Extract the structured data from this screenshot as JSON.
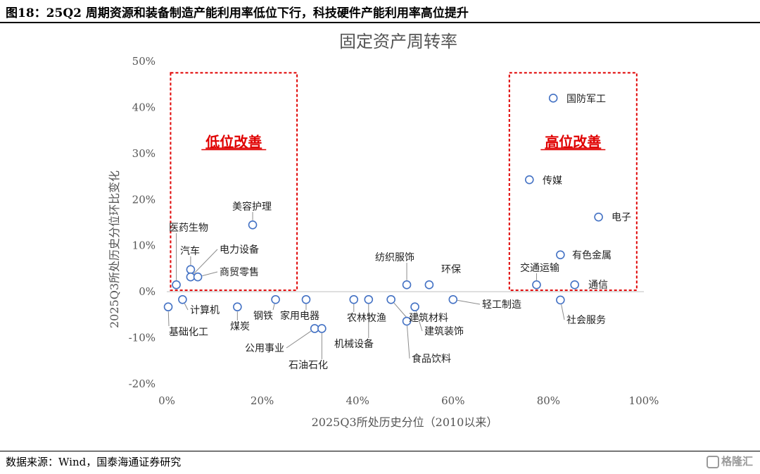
{
  "header": {
    "title": "图18：25Q2 周期资源和装备制造产能利用率低位下行，科技硬件产能利用率高位提升"
  },
  "footer": {
    "source": "数据来源：Wind，国泰海通证券研究",
    "watermark": "格隆汇"
  },
  "chart_data": {
    "type": "scatter",
    "title": "固定资产周转率",
    "xlabel": "2025Q3所处历史分位（2010以来）",
    "ylabel": "2025Q3所处历史分位环比变化",
    "xlim": [
      0,
      100
    ],
    "ylim": [
      -20,
      50
    ],
    "x_ticks": [
      "0%",
      "20%",
      "40%",
      "60%",
      "80%",
      "100%"
    ],
    "y_ticks": [
      "50%",
      "40%",
      "30%",
      "20%",
      "10%",
      "0%",
      "-10%",
      "-20%"
    ],
    "grid": false,
    "marker_color": "#4472C4",
    "highlight_color": "#e00000",
    "regions": [
      {
        "label": "低位改善",
        "x": [
          0.8,
          27.3
        ],
        "y": [
          0.3,
          47.5
        ]
      },
      {
        "label": "高位改善",
        "x": [
          71.8,
          98.5
        ],
        "y": [
          0.3,
          47.5
        ]
      }
    ],
    "points": [
      {
        "name": "国防军工",
        "x": 81,
        "y": 42
      },
      {
        "name": "传媒",
        "x": 76,
        "y": 24.3
      },
      {
        "name": "电子",
        "x": 90.5,
        "y": 16.2
      },
      {
        "name": "有色金属",
        "x": 82.5,
        "y": 8
      },
      {
        "name": "交通运输",
        "x": 77.5,
        "y": 1.5
      },
      {
        "name": "通信",
        "x": 85.5,
        "y": 1.5
      },
      {
        "name": "社会服务",
        "x": 82.5,
        "y": -1.8
      },
      {
        "name": "美容护理",
        "x": 18,
        "y": 14.5
      },
      {
        "name": "医药生物",
        "x": 2,
        "y": 1.5
      },
      {
        "name": "汽车",
        "x": 5,
        "y": 4.8
      },
      {
        "name": "电力设备",
        "x": 5,
        "y": 3.2
      },
      {
        "name": "商贸零售",
        "x": 6.5,
        "y": 3.2
      },
      {
        "name": "基础化工",
        "x": 0.3,
        "y": -3.3
      },
      {
        "name": "计算机",
        "x": 3.3,
        "y": -1.7
      },
      {
        "name": "煤炭",
        "x": 14.8,
        "y": -3.3
      },
      {
        "name": "钢铁",
        "x": 22.8,
        "y": -1.7
      },
      {
        "name": "家用电器",
        "x": 29.2,
        "y": -1.7
      },
      {
        "name": "公用事业",
        "x": 31,
        "y": -8
      },
      {
        "name": "石油石化",
        "x": 32.5,
        "y": -8
      },
      {
        "name": "农林牧渔",
        "x": 39.2,
        "y": -1.7
      },
      {
        "name": "机械设备",
        "x": 42.3,
        "y": -1.7
      },
      {
        "name": "纺织服饰",
        "x": 50.3,
        "y": 1.5
      },
      {
        "name": "环保",
        "x": 55,
        "y": 1.5
      },
      {
        "name": "建筑材料",
        "x": 47,
        "y": -1.7
      },
      {
        "name": "建筑装饰",
        "x": 52,
        "y": -3.3
      },
      {
        "name": "食品饮料",
        "x": 50.3,
        "y": -6.4
      },
      {
        "name": "轻工制造",
        "x": 60,
        "y": -1.7
      }
    ]
  }
}
